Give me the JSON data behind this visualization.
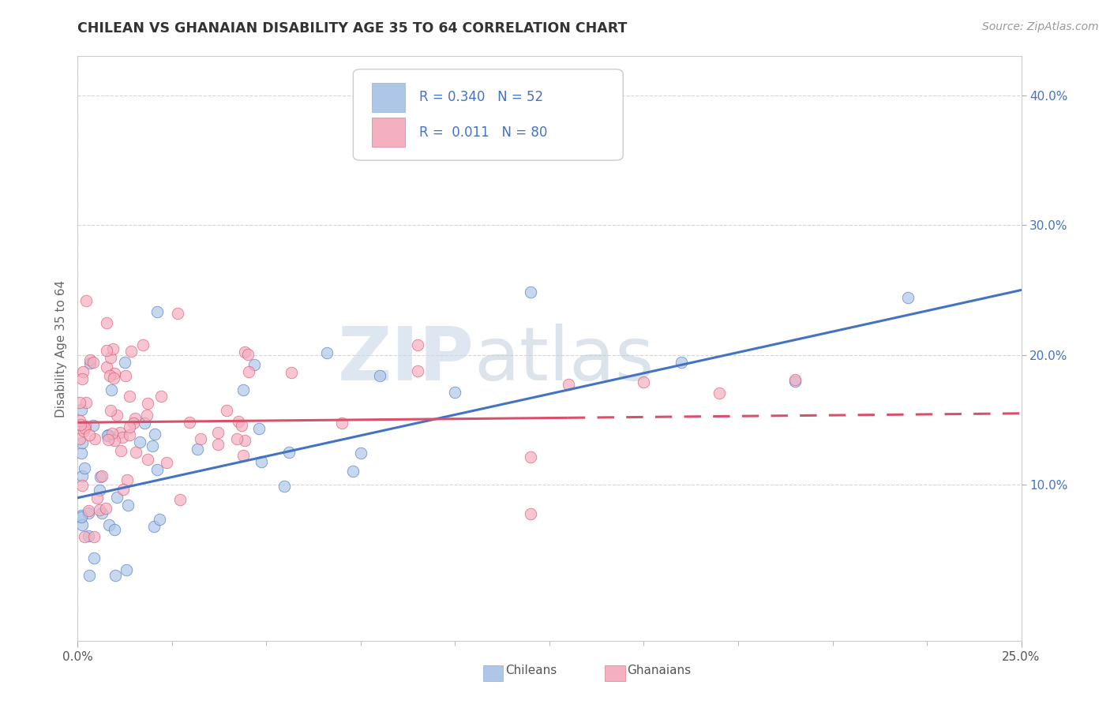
{
  "title": "CHILEAN VS GHANAIAN DISABILITY AGE 35 TO 64 CORRELATION CHART",
  "source": "Source: ZipAtlas.com",
  "ylabel": "Disability Age 35 to 64",
  "xlim": [
    0.0,
    0.25
  ],
  "ylim": [
    -0.02,
    0.43
  ],
  "ytick_positions": [
    0.1,
    0.2,
    0.3,
    0.4
  ],
  "ytick_labels": [
    "10.0%",
    "20.0%",
    "30.0%",
    "40.0%"
  ],
  "chilean_R": 0.34,
  "chilean_N": 52,
  "ghanaian_R": 0.011,
  "ghanaian_N": 80,
  "chilean_color": "#aec6e8",
  "ghanaian_color": "#f4afc0",
  "chilean_line_color": "#4472c4",
  "ghanaian_line_color": "#d9506a",
  "chilean_line": [
    0.0,
    0.09,
    0.25,
    0.25
  ],
  "ghanaian_line": [
    0.0,
    0.148,
    0.25,
    0.155
  ],
  "ghanaian_line_solid_end": 0.13,
  "watermark_zip": "ZIP",
  "watermark_atlas": "atlas"
}
